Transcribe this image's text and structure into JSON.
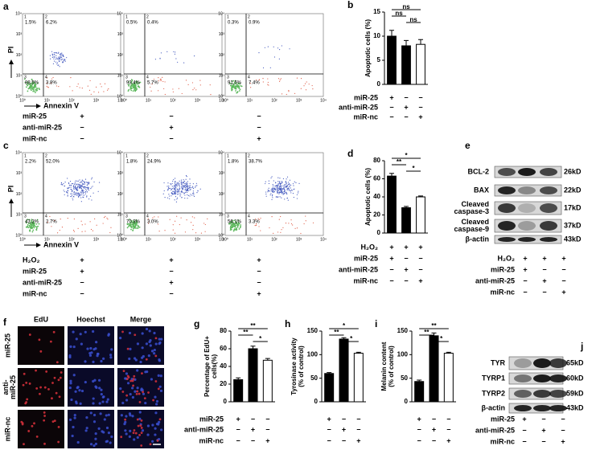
{
  "flow_cytometry": [
    {
      "panel": "a",
      "ylabel": "PI",
      "xlabel": "Annexin V",
      "axis_ticks": [
        "10⁰",
        "10¹",
        "10²",
        "10³",
        "10⁴"
      ],
      "quadrant_ids": [
        "1",
        "2",
        "3",
        "4"
      ],
      "plots": [
        [
          "1.5%",
          "6.2%",
          "88.5%",
          "3.8%"
        ],
        [
          "0.5%",
          "0.4%",
          "93.4%",
          "5.7%"
        ],
        [
          "0.3%",
          "0.9%",
          "91.5%",
          "7.4%"
        ]
      ],
      "conditions": [
        {
          "label": "miR-25",
          "signs": [
            "+",
            "−",
            "−"
          ]
        },
        {
          "label": "anti-miR-25",
          "signs": [
            "−",
            "+",
            "−"
          ]
        },
        {
          "label": "miR-nc",
          "signs": [
            "−",
            "−",
            "+"
          ]
        }
      ]
    },
    {
      "panel": "c",
      "ylabel": "PI",
      "xlabel": "Annexin V",
      "axis_ticks": [
        "10⁰",
        "10¹",
        "10²",
        "10³",
        "10⁴"
      ],
      "quadrant_ids": [
        "1",
        "2",
        "3",
        "4"
      ],
      "plots": [
        [
          "2.2%",
          "52.0%",
          "43.2%",
          "2.7%"
        ],
        [
          "1.8%",
          "24.9%",
          "70.3%",
          "3.0%"
        ],
        [
          "1.8%",
          "38.7%",
          "56.1%",
          "3.3%"
        ]
      ],
      "conditions": [
        {
          "label": "H₂O₂",
          "signs": [
            "+",
            "+",
            "+"
          ]
        },
        {
          "label": "miR-25",
          "signs": [
            "+",
            "−",
            "−"
          ]
        },
        {
          "label": "anti-miR-25",
          "signs": [
            "−",
            "+",
            "−"
          ]
        },
        {
          "label": "miR-nc",
          "signs": [
            "−",
            "−",
            "+"
          ]
        }
      ]
    }
  ],
  "chart_data": [
    {
      "type": "bar",
      "panel": "b",
      "ylabel": [
        "Apoptotic cells (%)"
      ],
      "values": [
        10,
        8,
        8.3
      ],
      "errors": [
        1.2,
        1.1,
        1
      ],
      "colors": [
        "#000000",
        "#000000",
        "#ffffff"
      ],
      "ylim": [
        0,
        15
      ],
      "yticks": [
        0,
        5,
        10,
        15
      ],
      "significance": [
        {
          "between": [
            0,
            2
          ],
          "label": "ns"
        },
        {
          "between": [
            0,
            1
          ],
          "label": "ns"
        },
        {
          "between": [
            1,
            2
          ],
          "label": "ns"
        }
      ],
      "conditions": [
        {
          "label": "miR-25",
          "signs": [
            "+",
            "−",
            "−"
          ]
        },
        {
          "label": "anti-miR-25",
          "signs": [
            "−",
            "+",
            "−"
          ]
        },
        {
          "label": "miR-nc",
          "signs": [
            "−",
            "−",
            "+"
          ]
        }
      ]
    },
    {
      "type": "bar",
      "panel": "d",
      "ylabel": [
        "Apoptotic cells (%)"
      ],
      "values": [
        63,
        28,
        40
      ],
      "errors": [
        3,
        1.5,
        1
      ],
      "colors": [
        "#000000",
        "#000000",
        "#ffffff"
      ],
      "ylim": [
        0,
        80
      ],
      "yticks": [
        0,
        20,
        40,
        60,
        80
      ],
      "significance": [
        {
          "between": [
            0,
            2
          ],
          "label": "*"
        },
        {
          "between": [
            0,
            1
          ],
          "label": "**"
        },
        {
          "between": [
            1,
            2
          ],
          "label": "*"
        }
      ],
      "conditions": [
        {
          "label": "H₂O₂",
          "signs": [
            "+",
            "+",
            "+"
          ]
        },
        {
          "label": "miR-25",
          "signs": [
            "+",
            "−",
            "−"
          ]
        },
        {
          "label": "anti-miR-25",
          "signs": [
            "−",
            "+",
            "−"
          ]
        },
        {
          "label": "miR-nc",
          "signs": [
            "−",
            "−",
            "+"
          ]
        }
      ]
    },
    {
      "type": "bar",
      "panel": "g",
      "ylabel": [
        "Percentage of EdU+",
        "cells(%)"
      ],
      "values": [
        25,
        60,
        47
      ],
      "errors": [
        2,
        3,
        2
      ],
      "colors": [
        "#000000",
        "#000000",
        "#ffffff"
      ],
      "ylim": [
        0,
        80
      ],
      "yticks": [
        0,
        20,
        40,
        60,
        80
      ],
      "significance": [
        {
          "between": [
            0,
            2
          ],
          "label": "**"
        },
        {
          "between": [
            0,
            1
          ],
          "label": "**"
        },
        {
          "between": [
            1,
            2
          ],
          "label": "*"
        }
      ],
      "conditions": [
        {
          "label": "miR-25",
          "signs": [
            "+",
            "−",
            "−"
          ]
        },
        {
          "label": "anti-miR-25",
          "signs": [
            "−",
            "+",
            "−"
          ]
        },
        {
          "label": "miR-nc",
          "signs": [
            "−",
            "−",
            "+"
          ]
        }
      ]
    },
    {
      "type": "bar",
      "panel": "h",
      "ylabel": [
        "Tyrosinase activity",
        "(% of control)"
      ],
      "values": [
        60,
        133,
        103
      ],
      "errors": [
        2,
        3,
        2
      ],
      "colors": [
        "#000000",
        "#000000",
        "#ffffff"
      ],
      "ylim": [
        0,
        150
      ],
      "yticks": [
        0,
        50,
        100,
        150
      ],
      "significance": [
        {
          "between": [
            0,
            2
          ],
          "label": "*"
        },
        {
          "between": [
            0,
            1
          ],
          "label": "**"
        },
        {
          "between": [
            1,
            2
          ],
          "label": "*"
        }
      ],
      "conditions": [
        {
          "signs": [
            "+",
            "−",
            "−"
          ]
        },
        {
          "signs": [
            "−",
            "+",
            "−"
          ]
        },
        {
          "signs": [
            "−",
            "−",
            "+"
          ]
        }
      ]
    },
    {
      "type": "bar",
      "panel": "i",
      "ylabel": [
        "Melanin content",
        "(% of control)"
      ],
      "values": [
        43,
        140,
        103
      ],
      "errors": [
        3,
        6,
        2
      ],
      "colors": [
        "#000000",
        "#000000",
        "#ffffff"
      ],
      "ylim": [
        0,
        150
      ],
      "yticks": [
        0,
        50,
        100,
        150
      ],
      "significance": [
        {
          "between": [
            0,
            2
          ],
          "label": "**"
        },
        {
          "between": [
            0,
            1
          ],
          "label": "**"
        },
        {
          "between": [
            1,
            2
          ],
          "label": "*"
        }
      ],
      "conditions": [
        {
          "signs": [
            "+",
            "−",
            "−"
          ]
        },
        {
          "signs": [
            "−",
            "+",
            "−"
          ]
        },
        {
          "signs": [
            "−",
            "−",
            "+"
          ]
        }
      ]
    }
  ],
  "blots": [
    {
      "panel": "e",
      "rows": [
        {
          "label": [
            "BCL-2"
          ],
          "size": "26kD"
        },
        {
          "label": [
            "BAX"
          ],
          "size": "22kD"
        },
        {
          "label": [
            "Cleaved",
            "caspase-3"
          ],
          "size": "17kD"
        },
        {
          "label": [
            "Cleaved",
            "caspase-9"
          ],
          "size": "37kD"
        },
        {
          "label": [
            "β-actin"
          ],
          "size": "43kD"
        }
      ],
      "conditions": [
        {
          "label": "H₂O₂",
          "signs": [
            "+",
            "+",
            "+"
          ]
        },
        {
          "label": "miR-25",
          "signs": [
            "+",
            "−",
            "−"
          ]
        },
        {
          "label": "anti-miR-25",
          "signs": [
            "−",
            "+",
            "−"
          ]
        },
        {
          "label": "miR-nc",
          "signs": [
            "−",
            "−",
            "+"
          ]
        }
      ]
    },
    {
      "panel": "j",
      "rows": [
        {
          "label": [
            "TYR"
          ],
          "size": "65kD"
        },
        {
          "label": [
            "TYRP1"
          ],
          "size": "60kD"
        },
        {
          "label": [
            "TYRP2"
          ],
          "size": "59kD"
        },
        {
          "label": [
            "β-actin"
          ],
          "size": "43kD"
        }
      ],
      "conditions": [
        {
          "label": "miR-25",
          "signs": [
            "+",
            "−",
            "−"
          ]
        },
        {
          "label": "anti-miR-25",
          "signs": [
            "−",
            "+",
            "−"
          ]
        },
        {
          "label": "miR-nc",
          "signs": [
            "−",
            "−",
            "+"
          ]
        }
      ]
    }
  ],
  "micrographs": {
    "panel": "f",
    "columns": [
      "EdU",
      "Hoechst",
      "Merge"
    ],
    "rows": [
      [
        "miR-25"
      ],
      [
        "anti-",
        "miR-25"
      ],
      [
        "miR-nc"
      ]
    ]
  }
}
